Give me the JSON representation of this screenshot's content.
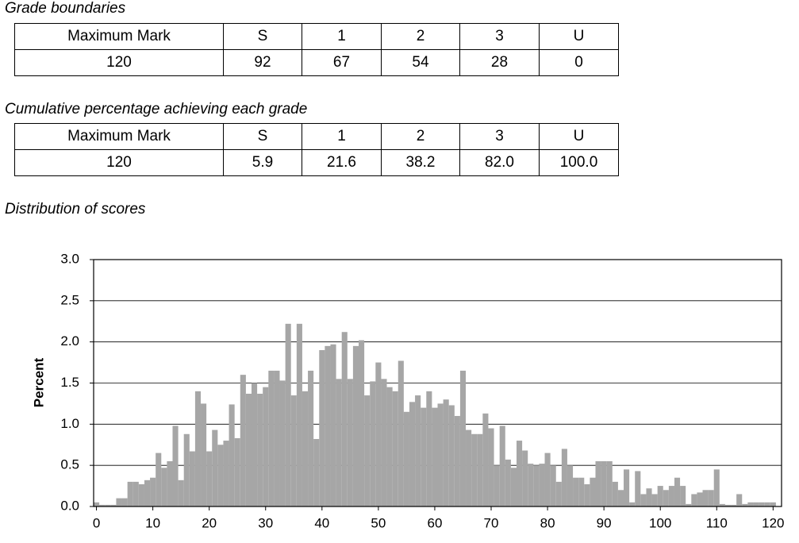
{
  "sections": [
    {
      "title": "Grade boundaries",
      "table": {
        "rows": [
          [
            "Maximum Mark",
            "S",
            "1",
            "2",
            "3",
            "U"
          ],
          [
            "120",
            "92",
            "67",
            "54",
            "28",
            "0"
          ]
        ]
      }
    },
    {
      "title": "Cumulative percentage achieving each grade",
      "table": {
        "rows": [
          [
            "Maximum Mark",
            "S",
            "1",
            "2",
            "3",
            "U"
          ],
          [
            "120",
            "5.9",
            "21.6",
            "38.2",
            "82.0",
            "100.0"
          ]
        ]
      }
    }
  ],
  "chart_title": "Distribution of scores",
  "chart_data": {
    "type": "bar",
    "ylabel": "Percent",
    "color": "#a6a6a6",
    "grid": true,
    "x": [
      0,
      1,
      2,
      3,
      4,
      5,
      6,
      7,
      8,
      9,
      10,
      11,
      12,
      13,
      14,
      15,
      16,
      17,
      18,
      19,
      20,
      21,
      22,
      23,
      24,
      25,
      26,
      27,
      28,
      29,
      30,
      31,
      32,
      33,
      34,
      35,
      36,
      37,
      38,
      39,
      40,
      41,
      42,
      43,
      44,
      45,
      46,
      47,
      48,
      49,
      50,
      51,
      52,
      53,
      54,
      55,
      56,
      57,
      58,
      59,
      60,
      61,
      62,
      63,
      64,
      65,
      66,
      67,
      68,
      69,
      70,
      71,
      72,
      73,
      74,
      75,
      76,
      77,
      78,
      79,
      80,
      81,
      82,
      83,
      84,
      85,
      86,
      87,
      88,
      89,
      90,
      91,
      92,
      93,
      94,
      95,
      96,
      97,
      98,
      99,
      100,
      101,
      102,
      103,
      104,
      105,
      106,
      107,
      108,
      109,
      110,
      111,
      112,
      113,
      114,
      115,
      116,
      117,
      118,
      119,
      120
    ],
    "values": [
      0.05,
      0.02,
      0.02,
      0.02,
      0.1,
      0.1,
      0.3,
      0.3,
      0.27,
      0.32,
      0.35,
      0.65,
      0.47,
      0.55,
      0.98,
      0.32,
      0.88,
      0.67,
      1.4,
      1.25,
      0.67,
      0.93,
      0.75,
      0.8,
      1.24,
      0.83,
      1.6,
      1.37,
      1.5,
      1.37,
      1.45,
      1.65,
      1.65,
      1.53,
      2.22,
      1.35,
      2.22,
      1.4,
      1.65,
      0.82,
      1.9,
      1.95,
      1.97,
      1.55,
      2.12,
      1.55,
      1.95,
      2.02,
      1.35,
      1.52,
      1.75,
      1.55,
      1.45,
      1.4,
      1.77,
      1.15,
      1.27,
      1.35,
      1.2,
      1.4,
      1.2,
      1.25,
      1.3,
      1.23,
      1.1,
      1.65,
      0.93,
      0.88,
      0.88,
      1.13,
      0.95,
      0.5,
      0.98,
      0.57,
      0.47,
      0.8,
      0.68,
      0.52,
      0.5,
      0.52,
      0.65,
      0.5,
      0.3,
      0.7,
      0.5,
      0.35,
      0.35,
      0.27,
      0.35,
      0.55,
      0.55,
      0.55,
      0.3,
      0.2,
      0.45,
      0.05,
      0.43,
      0.15,
      0.22,
      0.15,
      0.25,
      0.2,
      0.25,
      0.35,
      0.25,
      0.03,
      0.15,
      0.17,
      0.2,
      0.2,
      0.45,
      0.03,
      0.02,
      0.02,
      0.15,
      0.03,
      0.05,
      0.05,
      0.05,
      0.05,
      0.05
    ],
    "xlim": [
      -0.5,
      121.5
    ],
    "xticks": [
      0,
      10,
      20,
      30,
      40,
      50,
      60,
      70,
      80,
      90,
      100,
      110,
      120
    ],
    "ylim": [
      0,
      3
    ],
    "yticks": [
      {
        "value": 0,
        "label": "0.0"
      },
      0.5,
      {
        "value": 1,
        "label": "1.0"
      },
      1.5,
      {
        "value": 2,
        "label": "2.0"
      },
      2.5,
      {
        "value": 3,
        "label": "3.0"
      }
    ]
  }
}
